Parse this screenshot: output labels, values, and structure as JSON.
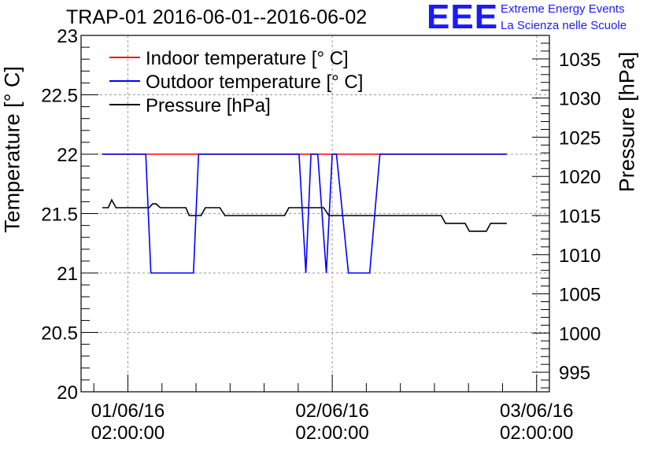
{
  "title": "TRAP-01 2016-06-01--2016-06-02",
  "logo": {
    "mark": "EEE",
    "line1": "Extreme Energy Events",
    "line2": "La Scienza nelle Scuole",
    "color": "#1a1aff"
  },
  "chart_data": {
    "type": "line",
    "title": "TRAP-01 2016-06-01--2016-06-02",
    "ylabel": "Temperature [° C]",
    "y2label": "Pressure [hPa]",
    "ylim": [
      20,
      23
    ],
    "y2lim": [
      992.5,
      1038
    ],
    "xlim": [
      "2016-05-31 20:30",
      "2016-06-03 03:30"
    ],
    "grid": true,
    "legend_position": "top-left",
    "y_ticks": [
      "20",
      "20.5",
      "21",
      "21.5",
      "22",
      "22.5",
      "23"
    ],
    "y2_ticks": [
      "995",
      "1000",
      "1005",
      "1010",
      "1015",
      "1020",
      "1025",
      "1030",
      "1035"
    ],
    "x_ticks": [
      {
        "date": "01/06/16",
        "time": "02:00:00",
        "x_hours": 0
      },
      {
        "date": "02/06/16",
        "time": "02:00:00",
        "x_hours": 24
      },
      {
        "date": "03/06/16",
        "time": "02:00:00",
        "x_hours": 48
      }
    ],
    "series": [
      {
        "name": "Indoor temperature [° C]",
        "color": "#ff0000",
        "axis": "left",
        "points": [
          [
            -3,
            22
          ],
          [
            44.5,
            22
          ]
        ]
      },
      {
        "name": "Outdoor temperature [° C]",
        "color": "#0000ff",
        "axis": "left",
        "points": [
          [
            -3,
            22
          ],
          [
            2.1,
            22
          ],
          [
            2.7,
            21
          ],
          [
            7.7,
            21
          ],
          [
            8.3,
            22
          ],
          [
            20.1,
            22
          ],
          [
            20.9,
            21
          ],
          [
            21.5,
            22
          ],
          [
            22.3,
            22
          ],
          [
            23.3,
            21
          ],
          [
            24.0,
            22
          ],
          [
            24.5,
            22
          ],
          [
            25.9,
            21
          ],
          [
            28.4,
            21
          ],
          [
            29.6,
            22
          ],
          [
            44.5,
            22
          ]
        ]
      },
      {
        "name": "Pressure [hPa]",
        "color": "#000000",
        "axis": "right",
        "points": [
          [
            -3,
            1016
          ],
          [
            -2.3,
            1016
          ],
          [
            -1.9,
            1017
          ],
          [
            -1.4,
            1016
          ],
          [
            2.5,
            1016
          ],
          [
            2.9,
            1016.5
          ],
          [
            3.3,
            1016.5
          ],
          [
            3.8,
            1016
          ],
          [
            6.8,
            1016
          ],
          [
            7.2,
            1015
          ],
          [
            8.6,
            1015
          ],
          [
            9.1,
            1016
          ],
          [
            10.8,
            1016
          ],
          [
            11.4,
            1015
          ],
          [
            18.4,
            1015
          ],
          [
            18.9,
            1016
          ],
          [
            23.0,
            1016
          ],
          [
            23.6,
            1015
          ],
          [
            36.8,
            1015
          ],
          [
            37.3,
            1014
          ],
          [
            39.6,
            1014
          ],
          [
            40.1,
            1013
          ],
          [
            42.1,
            1013
          ],
          [
            42.6,
            1014
          ],
          [
            44.5,
            1014
          ]
        ]
      }
    ]
  }
}
